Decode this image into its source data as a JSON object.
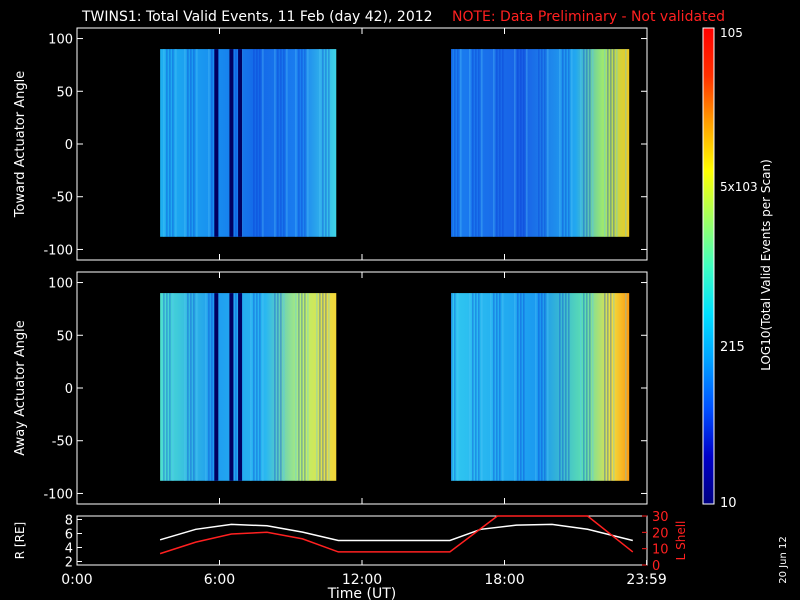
{
  "header": {
    "title": "TWINS1: Total Valid Events, 11 Feb (day  42), 2012",
    "note": "NOTE: Data Preliminary - Not validated",
    "note_color": "#ff2020"
  },
  "stamp": "20 Jun 12",
  "chart_data": [
    {
      "type": "heatmap",
      "ylabel": "Toward Actuator Angle",
      "ylim": [
        -110,
        110
      ],
      "yticks": [
        "100",
        "50",
        "0",
        "-50",
        "-100"
      ],
      "xlim_hours": [
        0,
        24
      ],
      "data_angle_range": [
        -88,
        90
      ],
      "data_intervals": [
        {
          "start": "03:30",
          "end": "10:55"
        },
        {
          "start": "15:45",
          "end": "23:15"
        }
      ],
      "gaps": [
        "05:52",
        "06:30",
        "06:52"
      ]
    },
    {
      "type": "heatmap",
      "ylabel": "Away Actuator Angle",
      "ylim": [
        -110,
        110
      ],
      "yticks": [
        "100",
        "50",
        "0",
        "-50",
        "-100"
      ],
      "xlim_hours": [
        0,
        24
      ],
      "data_angle_range": [
        -88,
        90
      ],
      "data_intervals": [
        {
          "start": "03:30",
          "end": "10:55"
        },
        {
          "start": "15:45",
          "end": "23:15"
        }
      ],
      "gaps": [
        "05:52",
        "06:30",
        "06:52"
      ]
    },
    {
      "type": "line",
      "ylabel": "R [RE]",
      "ylabel_right": "L Shell",
      "ylim": [
        1.5,
        8.5
      ],
      "yticks": [
        "8",
        "6",
        "4",
        "2"
      ],
      "ylim_right": [
        0,
        30
      ],
      "yticks_right": [
        "30",
        "20",
        "10",
        "0"
      ],
      "xlabel": "Time (UT)",
      "xticks": [
        "0:00",
        "6:00",
        "12:00",
        "18:00",
        "23:59"
      ],
      "series": [
        {
          "name": "R",
          "color": "#ffffff",
          "x": [
            3.5,
            5,
            6.5,
            8,
            9.5,
            11,
            13,
            15.7,
            17,
            18.5,
            20,
            21.5,
            23.4
          ],
          "y": [
            5.1,
            6.6,
            7.3,
            7.1,
            6.2,
            5.0,
            5.0,
            5.0,
            6.6,
            7.2,
            7.3,
            6.6,
            5.0
          ]
        },
        {
          "name": "L Shell",
          "color": "#ff2020",
          "x": [
            3.5,
            5,
            6.5,
            8,
            9.5,
            11,
            13,
            15.7,
            17.7,
            21.5,
            23.4
          ],
          "y": [
            7,
            14,
            19,
            20,
            16,
            8,
            8,
            8,
            31,
            31,
            8
          ]
        }
      ]
    }
  ],
  "colorbar": {
    "label": "LOG10(Total Valid Events per Scan)",
    "ticks": [
      "10",
      "215",
      "5x103",
      "105"
    ],
    "colors": [
      "#000080",
      "#0000c8",
      "#0050ff",
      "#00a0ff",
      "#00e0ff",
      "#40ffc0",
      "#a0ff60",
      "#ffff00",
      "#ffa000",
      "#ff3000",
      "#ff0000"
    ]
  }
}
